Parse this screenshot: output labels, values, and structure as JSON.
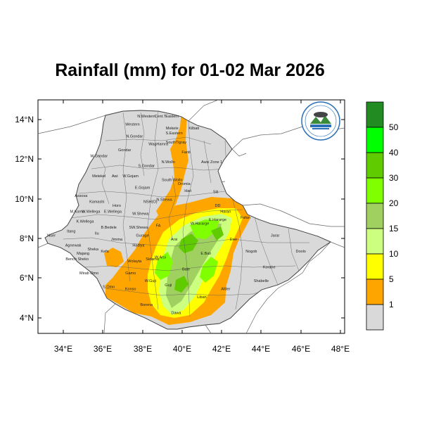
{
  "title": "Rainfall (mm) for 01-02 Mar 2026",
  "x_ticks": [
    "34°E",
    "36°E",
    "38°E",
    "40°E",
    "42°E",
    "44°E",
    "46°E",
    "48°E"
  ],
  "y_ticks": [
    "14°N",
    "12°N",
    "10°N",
    "8°N",
    "6°N",
    "4°N"
  ],
  "legend": {
    "labels": [
      "1",
      "5",
      "10",
      "15",
      "20",
      "30",
      "40",
      "50"
    ],
    "colors": [
      "#d9d9d9",
      "#ffa500",
      "#ffff00",
      "#ccff80",
      "#a0d060",
      "#80ff00",
      "#60cc00",
      "#00ff00",
      "#228b22"
    ]
  },
  "regions": [
    {
      "label": "Western",
      "lon": 37.5,
      "lat": 13.7
    },
    {
      "label": "N.Western",
      "lon": 38.2,
      "lat": 14.1
    },
    {
      "label": "Cent.T",
      "lon": 38.9,
      "lat": 14.1
    },
    {
      "label": "Eastern",
      "lon": 39.5,
      "lat": 14.1
    },
    {
      "label": "Mekele",
      "lon": 39.5,
      "lat": 13.5
    },
    {
      "label": "S.Eastern",
      "lon": 39.6,
      "lat": 13.25
    },
    {
      "label": "Kilbati",
      "lon": 40.6,
      "lat": 13.5
    },
    {
      "label": "N.Gondar",
      "lon": 37.6,
      "lat": 13.1
    },
    {
      "label": "SouthTigray",
      "lon": 39.7,
      "lat": 12.8
    },
    {
      "label": "WagHamra",
      "lon": 38.8,
      "lat": 12.7
    },
    {
      "label": "Gondar",
      "lon": 37.1,
      "lat": 12.4
    },
    {
      "label": "Fanti",
      "lon": 40.2,
      "lat": 12.3
    },
    {
      "label": "W.Gondar",
      "lon": 35.8,
      "lat": 12.1
    },
    {
      "label": "N.Wollo",
      "lon": 39.3,
      "lat": 11.8
    },
    {
      "label": "Awsi Zone 1",
      "lon": 41.5,
      "lat": 11.8
    },
    {
      "label": "S.Gondar",
      "lon": 38.2,
      "lat": 11.6
    },
    {
      "label": "Metekel",
      "lon": 35.8,
      "lat": 11.1
    },
    {
      "label": "Awi",
      "lon": 36.6,
      "lat": 11.1
    },
    {
      "label": "W.Gojam",
      "lon": 37.4,
      "lat": 11.1
    },
    {
      "label": "South Wollo",
      "lon": 39.5,
      "lat": 10.9
    },
    {
      "label": "Oromia",
      "lon": 40.1,
      "lat": 10.7
    },
    {
      "label": "E.Gojam",
      "lon": 38.0,
      "lat": 10.5
    },
    {
      "label": "Hari",
      "lon": 40.3,
      "lat": 10.35
    },
    {
      "label": "Siti",
      "lon": 41.7,
      "lat": 10.3
    },
    {
      "label": "Assosa",
      "lon": 34.9,
      "lat": 10.1
    },
    {
      "label": "Kamashi",
      "lon": 35.7,
      "lat": 9.8
    },
    {
      "label": "Horo",
      "lon": 36.7,
      "lat": 9.6
    },
    {
      "label": "N.Shewa",
      "lon": 39.1,
      "lat": 9.9
    },
    {
      "label": "NSH(O)",
      "lon": 38.4,
      "lat": 9.8
    },
    {
      "label": "DD",
      "lon": 41.8,
      "lat": 9.6
    },
    {
      "label": "M.Komo",
      "lon": 34.7,
      "lat": 9.3
    },
    {
      "label": "W.Wellega",
      "lon": 35.4,
      "lat": 9.3
    },
    {
      "label": "E.Wellega",
      "lon": 36.5,
      "lat": 9.3
    },
    {
      "label": "W.Shewa",
      "lon": 37.9,
      "lat": 9.2
    },
    {
      "label": "Harari",
      "lon": 42.2,
      "lat": 9.3
    },
    {
      "label": "K.Wellega",
      "lon": 35.1,
      "lat": 8.8
    },
    {
      "label": "Fafan",
      "lon": 43.2,
      "lat": 9.0
    },
    {
      "label": "E.Hararge",
      "lon": 41.8,
      "lat": 8.9
    },
    {
      "label": "W.Hararge",
      "lon": 40.9,
      "lat": 8.7
    },
    {
      "label": "B.Bedele",
      "lon": 36.3,
      "lat": 8.5
    },
    {
      "label": "SW.Shewa",
      "lon": 37.8,
      "lat": 8.5
    },
    {
      "label": "FA",
      "lon": 38.8,
      "lat": 8.6
    },
    {
      "label": "Jarar",
      "lon": 44.7,
      "lat": 8.1
    },
    {
      "label": "Nuer",
      "lon": 33.4,
      "lat": 8.1
    },
    {
      "label": "Itang",
      "lon": 34.4,
      "lat": 8.3
    },
    {
      "label": "Ilu",
      "lon": 35.7,
      "lat": 8.2
    },
    {
      "label": "Gurage",
      "lon": 38.0,
      "lat": 8.1
    },
    {
      "label": "Arsi",
      "lon": 39.6,
      "lat": 7.9
    },
    {
      "label": "Erer",
      "lon": 42.6,
      "lat": 7.9
    },
    {
      "label": "Agnewak",
      "lon": 34.5,
      "lat": 7.6
    },
    {
      "label": "Jimma",
      "lon": 36.7,
      "lat": 7.9
    },
    {
      "label": "Hadiya",
      "lon": 37.8,
      "lat": 7.6
    },
    {
      "label": "Majang",
      "lon": 35.0,
      "lat": 7.2
    },
    {
      "label": "Sheka",
      "lon": 35.5,
      "lat": 7.4
    },
    {
      "label": "Kefa",
      "lon": 36.1,
      "lat": 7.3
    },
    {
      "label": "E.Bali",
      "lon": 41.2,
      "lat": 7.2
    },
    {
      "label": "Bench Sheko",
      "lon": 34.7,
      "lat": 6.9
    },
    {
      "label": "Nogob",
      "lon": 43.5,
      "lat": 7.3
    },
    {
      "label": "Doolo",
      "lon": 46.0,
      "lat": 7.3
    },
    {
      "label": "Wolayta",
      "lon": 37.6,
      "lat": 6.8
    },
    {
      "label": "Sidama",
      "lon": 38.5,
      "lat": 6.9
    },
    {
      "label": "W.Arsi",
      "lon": 38.9,
      "lat": 7.0
    },
    {
      "label": "Mirab Omo",
      "lon": 35.3,
      "lat": 6.2
    },
    {
      "label": "Bale",
      "lon": 40.2,
      "lat": 6.4
    },
    {
      "label": "Gamo",
      "lon": 37.4,
      "lat": 6.2
    },
    {
      "label": "Korahe",
      "lon": 44.4,
      "lat": 6.5
    },
    {
      "label": "S.Omo",
      "lon": 36.3,
      "lat": 5.5
    },
    {
      "label": "W.Guji",
      "lon": 38.4,
      "lat": 5.8
    },
    {
      "label": "Guji",
      "lon": 39.3,
      "lat": 5.6
    },
    {
      "label": "Shabelle",
      "lon": 44.0,
      "lat": 5.8
    },
    {
      "label": "Konso",
      "lon": 37.4,
      "lat": 5.4
    },
    {
      "label": "Afder",
      "lon": 42.2,
      "lat": 5.4
    },
    {
      "label": "Liban",
      "lon": 41.0,
      "lat": 5.0
    },
    {
      "label": "Borena",
      "lon": 38.2,
      "lat": 4.6
    },
    {
      "label": "Dawa",
      "lon": 39.7,
      "lat": 4.2
    }
  ]
}
